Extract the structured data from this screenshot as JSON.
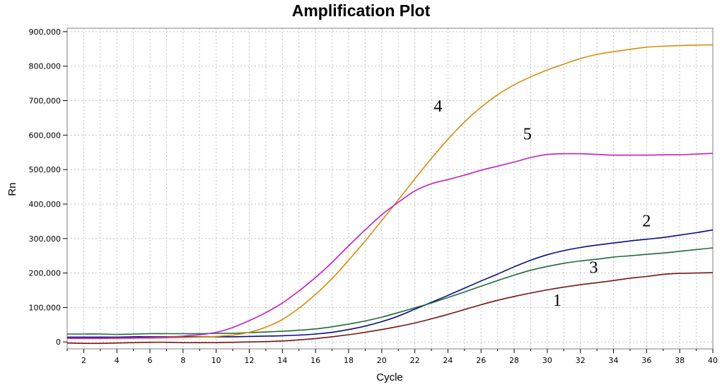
{
  "chart_data": {
    "type": "line",
    "title": "Amplification Plot",
    "xlabel": "Cycle",
    "ylabel": "Rn",
    "xlim": [
      1,
      40
    ],
    "ylim": [
      -20000,
      910000
    ],
    "x_ticks": [
      2,
      4,
      6,
      8,
      10,
      12,
      14,
      16,
      18,
      20,
      22,
      24,
      26,
      28,
      30,
      32,
      34,
      36,
      38,
      40
    ],
    "y_ticks": [
      0,
      100000,
      200000,
      300000,
      400000,
      500000,
      600000,
      700000,
      800000,
      900000
    ],
    "y_tick_labels": [
      "0",
      "100,000",
      "200,000",
      "300,000",
      "400,000",
      "500,000",
      "600,000",
      "700,000",
      "800,000",
      "900,000"
    ],
    "grid": true,
    "legend": "none",
    "x": [
      1,
      2,
      3,
      4,
      5,
      6,
      7,
      8,
      9,
      10,
      11,
      12,
      13,
      14,
      15,
      16,
      17,
      18,
      19,
      20,
      21,
      22,
      23,
      24,
      25,
      26,
      27,
      28,
      29,
      30,
      31,
      32,
      33,
      34,
      35,
      36,
      37,
      38,
      39,
      40
    ],
    "series": [
      {
        "name": "1",
        "label_pos": [
          30.6,
          105000
        ],
        "color": "#7a1414",
        "values": [
          -3000,
          -4000,
          -4000,
          -3000,
          -2000,
          -1000,
          -1000,
          -2000,
          -2000,
          -2000,
          -1000,
          0,
          1000,
          3000,
          6000,
          10000,
          15000,
          21000,
          28000,
          36000,
          45000,
          55000,
          67000,
          80000,
          94000,
          108000,
          121000,
          132000,
          142000,
          151000,
          159000,
          166000,
          172000,
          178000,
          185000,
          190000,
          196000,
          199000,
          200000,
          201000
        ]
      },
      {
        "name": "2",
        "label_pos": [
          36.0,
          335000
        ],
        "color": "#0a0a8c",
        "values": [
          14000,
          14000,
          14000,
          14000,
          15000,
          15000,
          15000,
          15000,
          15000,
          15000,
          15000,
          16000,
          17000,
          18000,
          20000,
          23000,
          28000,
          36000,
          46000,
          59000,
          75000,
          95000,
          115000,
          135000,
          156000,
          177000,
          197000,
          218000,
          237000,
          253000,
          265000,
          274000,
          281000,
          287000,
          293000,
          298000,
          303000,
          310000,
          317000,
          325000
        ]
      },
      {
        "name": "3",
        "label_pos": [
          32.8,
          200000
        ],
        "color": "#1e6b38",
        "values": [
          23000,
          23000,
          23000,
          22000,
          23000,
          24000,
          24000,
          24000,
          24000,
          25000,
          25000,
          27000,
          29000,
          31000,
          34000,
          38000,
          44000,
          52000,
          61000,
          72000,
          85000,
          99000,
          113000,
          129000,
          145000,
          162000,
          178000,
          194000,
          208000,
          219000,
          228000,
          235000,
          240000,
          246000,
          250000,
          254000,
          258000,
          263000,
          268000,
          273000
        ]
      },
      {
        "name": "4",
        "label_pos": [
          23.4,
          668000
        ],
        "color": "#d98c0a",
        "values": [
          10000,
          10000,
          10000,
          10000,
          11000,
          11000,
          12000,
          13000,
          14000,
          16000,
          20000,
          28000,
          43000,
          65000,
          98000,
          138000,
          184000,
          237000,
          293000,
          352000,
          412000,
          473000,
          532000,
          588000,
          638000,
          681000,
          717000,
          746000,
          769000,
          789000,
          806000,
          822000,
          834000,
          842000,
          849000,
          855000,
          858000,
          860000,
          861000,
          862000
        ]
      },
      {
        "name": "5",
        "label_pos": [
          28.8,
          587000
        ],
        "color": "#c21ec2",
        "values": [
          11000,
          11000,
          11000,
          12000,
          12000,
          13000,
          14000,
          17000,
          21000,
          28000,
          42000,
          62000,
          85000,
          113000,
          148000,
          187000,
          231000,
          279000,
          325000,
          369000,
          405000,
          438000,
          459000,
          471000,
          484000,
          498000,
          510000,
          522000,
          535000,
          544000,
          546000,
          546000,
          544000,
          542000,
          542000,
          542000,
          543000,
          543000,
          545000,
          547000
        ]
      }
    ]
  }
}
